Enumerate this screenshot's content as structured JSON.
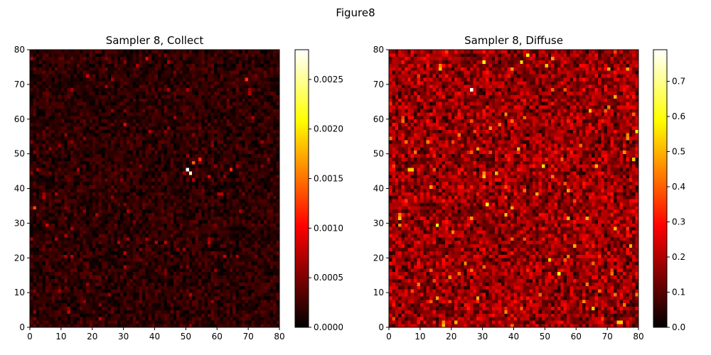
{
  "figure": {
    "suptitle": "Figure8"
  },
  "chart_data": [
    {
      "type": "heatmap",
      "title": "Sampler 8, Collect",
      "xlabel": "",
      "ylabel": "",
      "grid_size": [
        80,
        80
      ],
      "xlim": [
        0,
        80
      ],
      "ylim": [
        0,
        80
      ],
      "x_ticks": [
        0,
        10,
        20,
        30,
        40,
        50,
        60,
        70,
        80
      ],
      "y_ticks": [
        0,
        10,
        20,
        30,
        40,
        50,
        60,
        70,
        80
      ],
      "x_tick_labels": [
        "0",
        "10",
        "20",
        "30",
        "40",
        "50",
        "60",
        "70",
        "80"
      ],
      "y_tick_labels": [
        "0",
        "10",
        "20",
        "30",
        "40",
        "50",
        "60",
        "70",
        "80"
      ],
      "colormap": "hot",
      "colorbar": {
        "range": [
          0,
          0.0028
        ],
        "ticks": [
          0,
          0.0005,
          0.001,
          0.0015,
          0.002,
          0.0025
        ],
        "tick_labels": [
          "0.0000",
          "0.0005",
          "0.0010",
          "0.0015",
          "0.0020",
          "0.0025"
        ]
      },
      "grid": false,
      "value_profile": {
        "base": 0.00018,
        "noise": 0.00022,
        "hotspots": [
          {
            "x": 50,
            "y": 45,
            "v": 0.0028
          },
          {
            "x": 51,
            "y": 44,
            "v": 0.0026
          },
          {
            "x": 52,
            "y": 47,
            "v": 0.0014
          },
          {
            "x": 54,
            "y": 48,
            "v": 0.0012
          },
          {
            "x": 64,
            "y": 45,
            "v": 0.0012
          },
          {
            "x": 69,
            "y": 71,
            "v": 0.0012
          },
          {
            "x": 1,
            "y": 34,
            "v": 0.0013
          },
          {
            "x": 37,
            "y": 77,
            "v": 0.001
          },
          {
            "x": 30,
            "y": 58,
            "v": 0.0009
          },
          {
            "x": 57,
            "y": 43,
            "v": 0.0009
          },
          {
            "x": 12,
            "y": 4,
            "v": 0.0008
          },
          {
            "x": 8,
            "y": 25,
            "v": 0.0007
          },
          {
            "x": 71,
            "y": 60,
            "v": 0.0007
          },
          {
            "x": 74,
            "y": 53,
            "v": 0.0006
          }
        ]
      }
    },
    {
      "type": "heatmap",
      "title": "Sampler 8, Diffuse",
      "xlabel": "",
      "ylabel": "",
      "grid_size": [
        80,
        80
      ],
      "xlim": [
        0,
        80
      ],
      "ylim": [
        0,
        80
      ],
      "x_ticks": [
        0,
        10,
        20,
        30,
        40,
        50,
        60,
        70,
        80
      ],
      "y_ticks": [
        0,
        10,
        20,
        30,
        40,
        50,
        60,
        70,
        80
      ],
      "x_tick_labels": [
        "0",
        "10",
        "20",
        "30",
        "40",
        "50",
        "60",
        "70",
        "80"
      ],
      "y_tick_labels": [
        "0",
        "10",
        "20",
        "30",
        "40",
        "50",
        "60",
        "70",
        "80"
      ],
      "colormap": "hot",
      "colorbar": {
        "range": [
          0,
          0.79
        ],
        "ticks": [
          0,
          0.1,
          0.2,
          0.3,
          0.4,
          0.5,
          0.6,
          0.7
        ],
        "tick_labels": [
          "0.0",
          "0.1",
          "0.2",
          "0.3",
          "0.4",
          "0.5",
          "0.6",
          "0.7"
        ]
      },
      "grid": false,
      "value_profile": {
        "base": 0.17,
        "noise": 0.14,
        "hotspots": [
          {
            "x": 26,
            "y": 68,
            "v": 0.79
          },
          {
            "x": 30,
            "y": 76,
            "v": 0.6
          },
          {
            "x": 79,
            "y": 56,
            "v": 0.6
          },
          {
            "x": 54,
            "y": 15,
            "v": 0.6
          },
          {
            "x": 15,
            "y": 29,
            "v": 0.6
          },
          {
            "x": 42,
            "y": 76,
            "v": 0.55
          },
          {
            "x": 49,
            "y": 46,
            "v": 0.55
          },
          {
            "x": 77,
            "y": 23,
            "v": 0.5
          },
          {
            "x": 72,
            "y": 28,
            "v": 0.5
          },
          {
            "x": 66,
            "y": 46,
            "v": 0.5
          },
          {
            "x": 37,
            "y": 4,
            "v": 0.45
          },
          {
            "x": 3,
            "y": 29,
            "v": 0.45
          },
          {
            "x": 20,
            "y": 27,
            "v": 0.45
          },
          {
            "x": 76,
            "y": 54,
            "v": 0.45
          }
        ]
      }
    }
  ]
}
